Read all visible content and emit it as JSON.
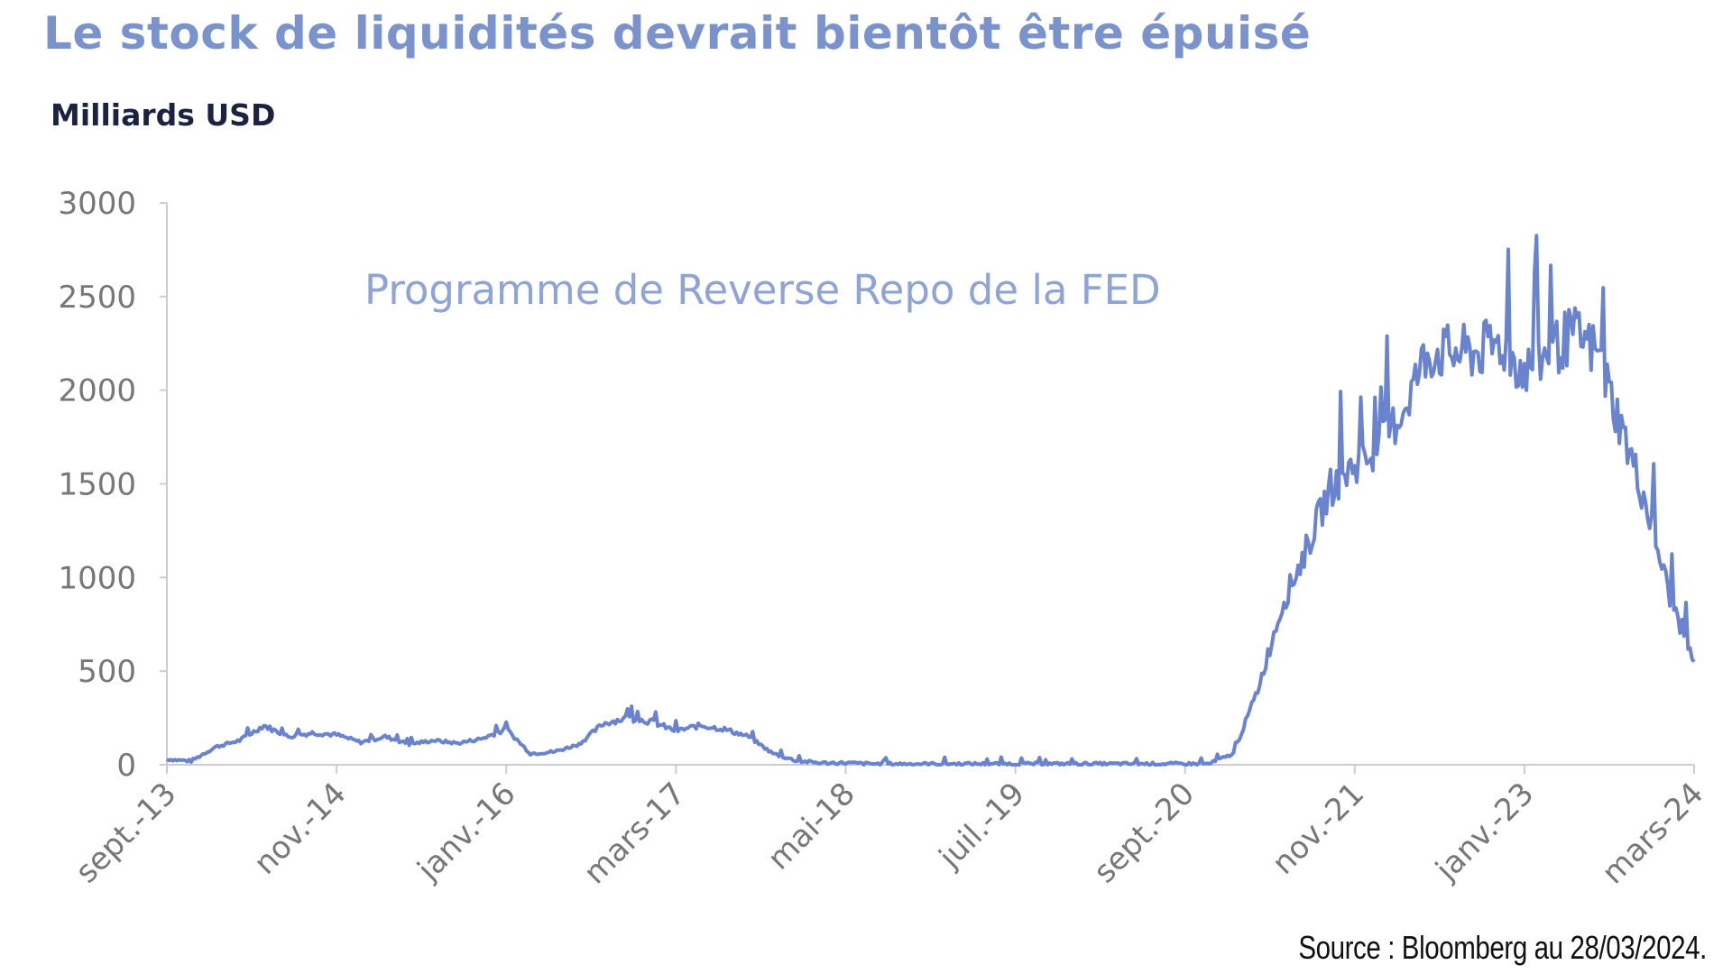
{
  "title": "Le stock de liquidités devrait bientôt être épuisé",
  "source": "Source : Bloomberg au 28/03/2024.",
  "colors": {
    "series": "#6a83cf",
    "title": "#7b93cc",
    "axis": "#cccccc"
  },
  "chart_data": {
    "type": "line",
    "ylabel": "Milliards USD",
    "ylim": [
      0,
      3000
    ],
    "yticks": [
      "0",
      "500",
      "1000",
      "1500",
      "2000",
      "2500",
      "3000"
    ],
    "xticks": [
      "sept.-13",
      "nov.-14",
      "janv.-16",
      "mars-17",
      "mai-18",
      "juil.-19",
      "sept.-20",
      "nov.-21",
      "janv.-23",
      "mars-24"
    ],
    "annotation": "Programme de Reverse Repo de la FED",
    "grid": false,
    "series": [
      {
        "x": [
          "2013-09",
          "2013-11",
          "2014-01",
          "2014-03",
          "2014-05",
          "2014-07",
          "2014-09",
          "2014-11",
          "2015-01",
          "2015-03",
          "2015-05",
          "2015-07",
          "2015-09",
          "2015-11",
          "2016-01",
          "2016-03",
          "2016-05",
          "2016-07",
          "2016-09",
          "2016-11",
          "2017-01",
          "2017-03",
          "2017-05",
          "2017-07",
          "2017-09",
          "2017-11",
          "2018-01",
          "2018-03",
          "2018-05",
          "2018-07",
          "2018-09",
          "2018-11",
          "2019-01",
          "2019-03",
          "2019-05",
          "2019-07",
          "2019-09",
          "2019-11",
          "2020-01",
          "2020-03",
          "2020-05",
          "2020-07",
          "2020-09",
          "2020-11",
          "2021-01",
          "2021-03",
          "2021-05",
          "2021-07",
          "2021-09",
          "2021-11",
          "2022-01",
          "2022-03",
          "2022-05",
          "2022-07",
          "2022-09",
          "2022-11",
          "2023-01",
          "2023-03",
          "2023-05",
          "2023-07",
          "2023-09",
          "2023-11",
          "2024-01",
          "2024-03"
        ],
        "values": [
          30,
          20,
          95,
          130,
          210,
          150,
          170,
          160,
          120,
          150,
          110,
          130,
          115,
          140,
          190,
          60,
          70,
          110,
          220,
          250,
          230,
          180,
          210,
          190,
          150,
          60,
          20,
          10,
          10,
          5,
          5,
          5,
          5,
          5,
          5,
          5,
          5,
          5,
          5,
          5,
          5,
          5,
          5,
          5,
          60,
          400,
          850,
          1150,
          1480,
          1600,
          1680,
          1900,
          2200,
          2200,
          2200,
          2250,
          2100,
          2200,
          2300,
          2200,
          1800,
          1400,
          900,
          550
        ]
      }
    ]
  }
}
